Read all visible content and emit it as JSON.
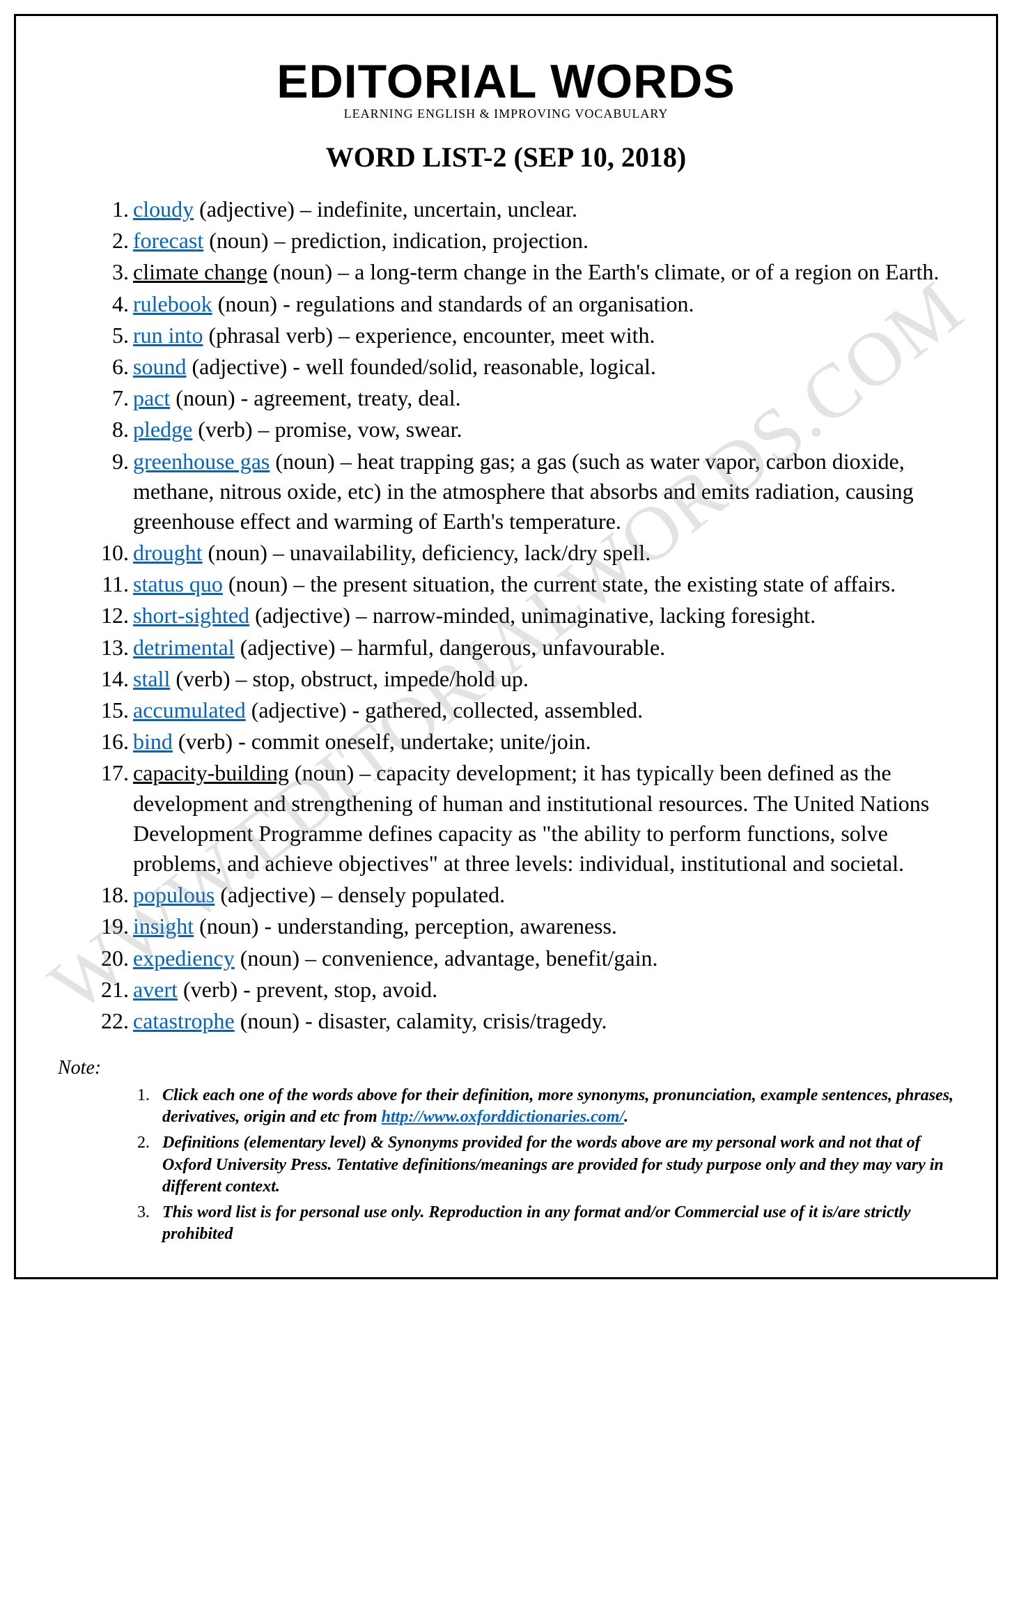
{
  "header": {
    "brand": "EDITORIAL WORDS",
    "tagline": "LEARNING ENGLISH & IMPROVING VOCABULARY",
    "title": "WORD LIST-2 (SEP 10, 2018)"
  },
  "watermark": "WWW.EDITORIALWORDS.COM",
  "words": [
    {
      "n": "1.",
      "word": "cloudy",
      "link": true,
      "rest": " (adjective) – indefinite, uncertain, unclear."
    },
    {
      "n": "2.",
      "word": "forecast",
      "link": true,
      "rest": " (noun) – prediction, indication, projection."
    },
    {
      "n": "3.",
      "word": "climate change",
      "link": false,
      "rest": " (noun) – a long-term change in the Earth's climate, or of a region on Earth."
    },
    {
      "n": "4.",
      "word": "rulebook",
      "link": true,
      "rest": " (noun) - regulations and standards of an organisation."
    },
    {
      "n": "5.",
      "word": "run into",
      "link": true,
      "rest": " (phrasal verb) – experience, encounter, meet with."
    },
    {
      "n": "6.",
      "word": "sound",
      "link": true,
      "rest": " (adjective) - well founded/solid, reasonable, logical."
    },
    {
      "n": "7.",
      "word": "pact",
      "link": true,
      "rest": " (noun) - agreement, treaty, deal."
    },
    {
      "n": "8.",
      "word": "pledge",
      "link": true,
      "rest": " (verb) – promise, vow, swear."
    },
    {
      "n": "9.",
      "word": "greenhouse gas",
      "link": true,
      "rest": " (noun) – heat trapping gas; a gas (such as water vapor, carbon dioxide, methane, nitrous oxide, etc) in the atmosphere that absorbs and emits radiation, causing greenhouse effect and warming of Earth's temperature."
    },
    {
      "n": "10.",
      "word": "drought",
      "link": true,
      "rest": " (noun) – unavailability, deficiency, lack/dry spell."
    },
    {
      "n": "11.",
      "word": "status quo",
      "link": true,
      "rest": " (noun) – the present situation, the current state, the existing state of affairs."
    },
    {
      "n": "12.",
      "word": "short-sighted",
      "link": true,
      "rest": " (adjective) – narrow-minded, unimaginative, lacking foresight."
    },
    {
      "n": "13.",
      "word": "detrimental",
      "link": true,
      "rest": " (adjective) – harmful, dangerous, unfavourable."
    },
    {
      "n": "14.",
      "word": "stall",
      "link": true,
      "rest": " (verb) – stop, obstruct, impede/hold up."
    },
    {
      "n": "15.",
      "word": "accumulated",
      "link": true,
      "rest": " (adjective) - gathered, collected, assembled."
    },
    {
      "n": "16.",
      "word": "bind",
      "link": true,
      "rest": " (verb) - commit oneself, undertake; unite/join."
    },
    {
      "n": "17.",
      "word": "capacity-building",
      "link": false,
      "rest": " (noun) – capacity development; it has typically been defined as the development and strengthening of human and institutional resources. The United Nations Development Programme defines capacity as \"the ability to perform functions, solve problems, and achieve objectives\" at three levels: individual, institutional and societal."
    },
    {
      "n": "18.",
      "word": "populous",
      "link": true,
      "rest": " (adjective) – densely populated."
    },
    {
      "n": "19.",
      "word": "insight",
      "link": true,
      "rest": " (noun) - understanding, perception, awareness."
    },
    {
      "n": "20.",
      "word": "expediency",
      "link": true,
      "rest": " (noun) – convenience, advantage, benefit/gain."
    },
    {
      "n": "21.",
      "word": "avert",
      "link": true,
      "rest": " (verb) - prevent, stop, avoid."
    },
    {
      "n": "22.",
      "word": "catastrophe",
      "link": true,
      "rest": " (noun) - disaster, calamity, crisis/tragedy."
    }
  ],
  "noteLabel": "Note:",
  "notes": [
    {
      "n": "1.",
      "pre": "Click each one of the words above for their definition, more synonyms, pronunciation, example sentences, phrases, derivatives, origin and etc from ",
      "link": "http://www.oxforddictionaries.com/",
      "post": "."
    },
    {
      "n": "2.",
      "pre": "Definitions (elementary level) & Synonyms provided for the words above are my personal work and not that of Oxford University Press. Tentative definitions/meanings are provided for study purpose only and they may vary in different context.",
      "link": "",
      "post": ""
    },
    {
      "n": "3.",
      "pre": "This word list is for personal use only. Reproduction in any format and/or Commercial use of it is/are strictly prohibited",
      "link": "",
      "post": ""
    }
  ],
  "colors": {
    "link": "#0563c1",
    "text": "#000000",
    "watermark": "rgba(128,128,128,0.22)",
    "background": "#ffffff",
    "border": "#000000"
  }
}
